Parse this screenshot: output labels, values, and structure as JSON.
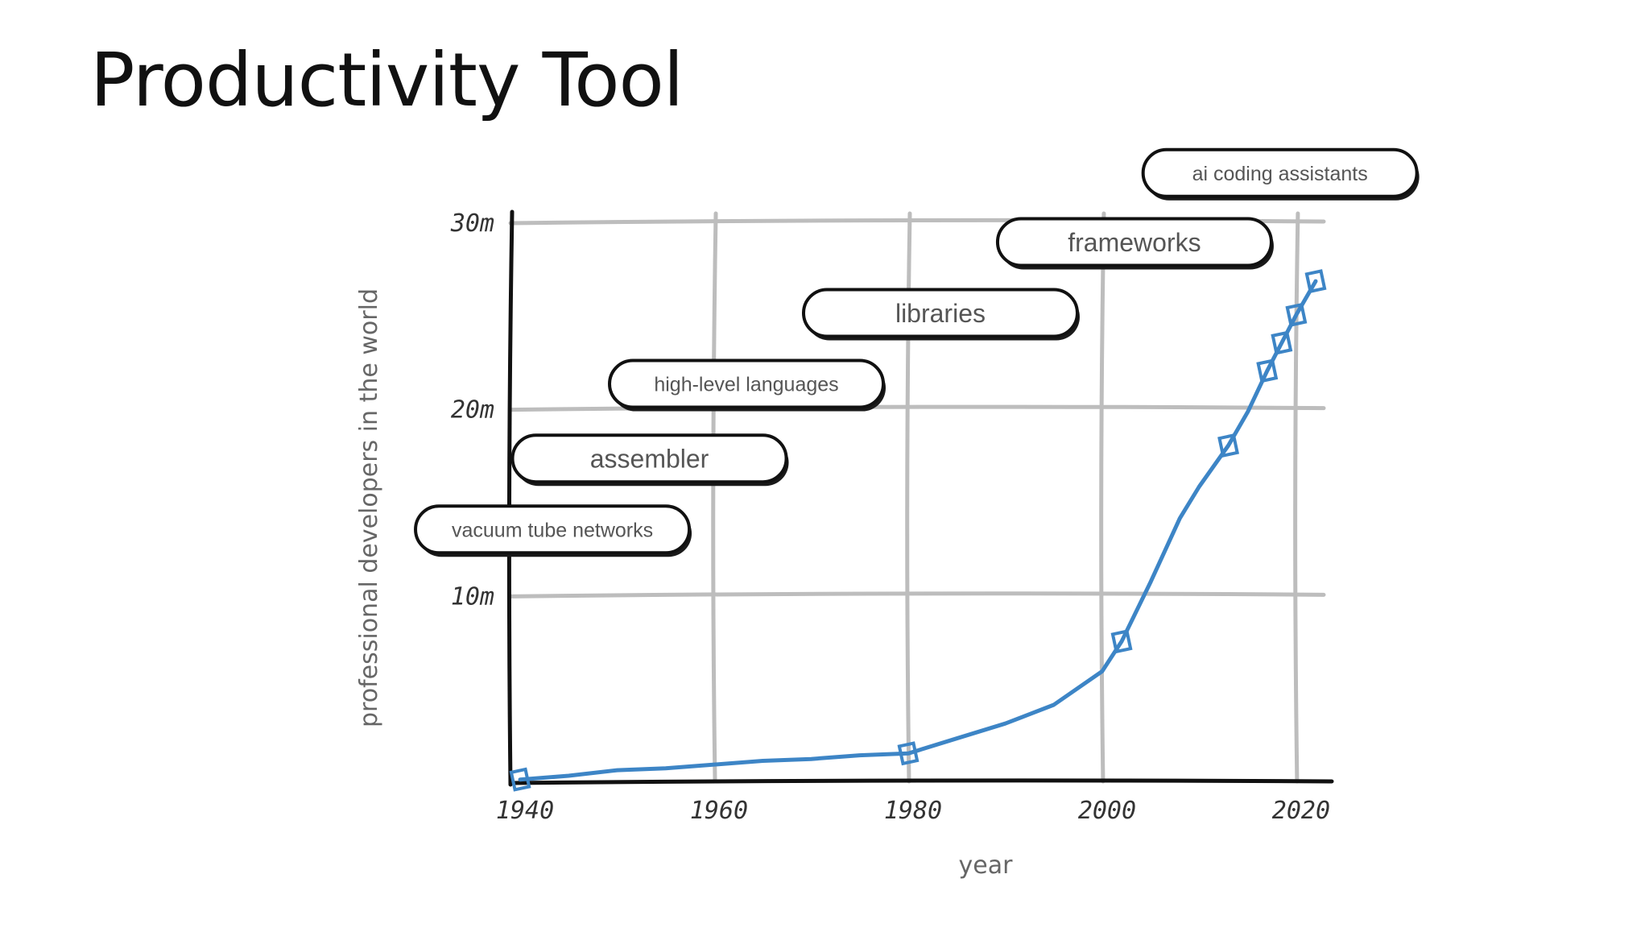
{
  "slide": {
    "title": "Productivity Tool"
  },
  "chart_data": {
    "type": "line",
    "title": "",
    "xlabel": "year",
    "ylabel": "professional developers in the world",
    "xlim": [
      1939,
      2022
    ],
    "ylim": [
      0,
      30
    ],
    "x_ticks": [
      1940,
      1960,
      1980,
      2000,
      2020
    ],
    "x_tick_labels": [
      "1940",
      "1960",
      "1980",
      "2000",
      "2020"
    ],
    "y_ticks": [
      10,
      20,
      30
    ],
    "y_tick_labels": [
      "10m",
      "20m",
      "30m"
    ],
    "grid": true,
    "series": [
      {
        "color": "#3d85c6",
        "x": [
          1940,
          1980,
          2002,
          2013,
          2017,
          2018.5,
          2020,
          2022
        ],
        "y": [
          0.1,
          1.5,
          7.5,
          18,
          22,
          23.5,
          25,
          26.8
        ],
        "marker": "square"
      }
    ],
    "curve": {
      "x": [
        1940,
        1945,
        1950,
        1955,
        1960,
        1965,
        1970,
        1975,
        1980,
        1985,
        1990,
        1995,
        2000,
        2002,
        2005,
        2008,
        2010,
        2013,
        2015,
        2017,
        2018.5,
        2020,
        2022
      ],
      "y": [
        0.1,
        0.3,
        0.6,
        0.7,
        0.9,
        1.1,
        1.2,
        1.4,
        1.5,
        2.3,
        3.1,
        4.1,
        5.9,
        7.5,
        10.7,
        14.1,
        15.8,
        18,
        19.8,
        22,
        23.5,
        25,
        26.8
      ]
    },
    "annotations": [
      {
        "text": "vacuum tube networks",
        "start_year": 1940,
        "level": 13.5,
        "size": "small"
      },
      {
        "text": "assembler",
        "start_year": 1950,
        "level": 17.3,
        "size": "large"
      },
      {
        "text": "high-level languages",
        "start_year": 1960,
        "level": 21.3,
        "size": "small"
      },
      {
        "text": "libraries",
        "start_year": 1980,
        "level": 25.1,
        "size": "large"
      },
      {
        "text": "frameworks",
        "start_year": 2000,
        "level": 28.9,
        "size": "large"
      },
      {
        "text": "ai coding assistants",
        "start_year": 2015,
        "level": 32.6,
        "size": "small"
      }
    ]
  }
}
